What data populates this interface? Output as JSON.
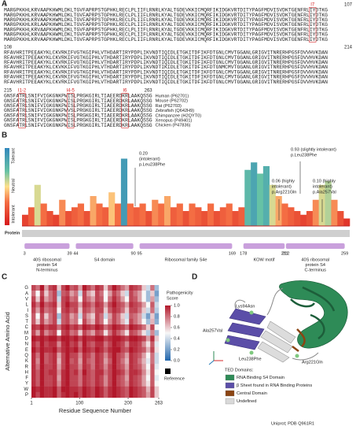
{
  "panel_a": {
    "label": "A",
    "blocks": [
      {
        "start": 1,
        "end": 107,
        "rows": [
          "MARGPKKHLKRVAAPKHWMLDKLTGVFAPRPSTGPHKLRECLPLIIFLRNRLKYALTGDEVKKICMQRFIKIDGKVRTDITYPAGFMDVISVDKTGENFRLIYDTKG",
          "MARGPKKHLKRVAAPKHWMLDKLTGVFAPRPSTGPHKLRECLPLIIFLRNRLKYALTGDEVKKICMQRFIKIDGKVRTDITYPAGFMDVISVDKTGENFRLIYDTKG",
          "MARGPKKHLKRVAAPKHWMLDKLTGVFAPRPSTGPHKLRECLPLIIFLRNRLKYALTGDEVKKICMQRFIKIDGKVRTDITYPAGFMDVISVDKTGENFRLIYDTKG",
          "MARGPKKHLKRLAAPKHWMLDKLTGVFAPRPSTGPHKLRECLPLIIFLRNRLKYALTGDEVKKICMQRFIKIDGKVRTDITYPAGFMDVISVDKTGENFRLIYDTKG",
          "MARGPKKHLKRVAAPKHWMLDKLTGVFAPRPSTGPHKLRECLPLIIFLRNRLKYALTGDEVKKICMQRFIKIDGKVRTDITYPAGFMDVISVDKTGENFRLIYDTKG",
          "MARGPKKHLKRVAAPKHWMLDKLTGVFAPRPSTGPHKLRECLPLIIFLRNRLKYALTGDEVKKICMQRFIKIDGKVRTDITYPAGFMDVISVDKTGENFRLIYDTKG",
          "MARGPKKHLKRVAAPKHWMLDKLTGVFAPRPSTGPHKLRECLPLIIFLRNRLKYALTGDEVKKICMQRFIKIDGKVRTDITYPAGFMDVISVDKTGENFRLIYDTKG"
        ]
      },
      {
        "start": 108,
        "end": 214,
        "rows": [
          "RFAVHRITPEEAKYKLCKVRKIFVGTKGIPHLVTHDARTIRYPDPLIKVNDTIQIDLETGKITDFIKFDTGNLCMVTGGANLGRIGVITNRERHPGSFDVVHVKDAN",
          "RFAVHRITPEEAKYKLCKVRKIFVGTKGIPHLVTHDARTIRYPDPLIKVNDTIQIDLETGKITDFIKFDTGNLCMVTGGANLGRIGVITNRERHPGSFDVVHVKDAN",
          "RFAVHRITPEEAKYKLCKVRKIFVGTKGIPHLVTHDARTIRYPDPLIKVNDTIQIDLETGKITDFIKFDTGNLCMVTGGANLGRIGVITNRERHPGSFDVVHVKDAN",
          "RFAVHRITPEEAKYKLCKVKKIFVGTKGIPHLVTHDARTIRYPDPLIKVNDTIKIDLETGKITDFIKFDTGNMCMVTGGANLGRIGVITNRERHPGSFDVVHVKDAN",
          "RFAVHRITPEEAKYKLCKVRKIFVGTKGIPHLVTHDARTIRYPDPLIKVNDTIQIDLETGKITDFIKFDTGNLCMVTGGANLGRIGVITNRERHPGSFDVVHVKDAN",
          "RFAVHRITPEEAKYKLCKVRKIFVGTKGIPHLVTHDARTIRYPDPLIKVNDTIQIDLETGKITDFIKFDTGNLCMVTGGANLGRIGVITNRERHPGSFDVVHVKDAN",
          "RFAVHRITPEEAKYKLCKVRKIFVGTKGIPHLVTHDARTIRYPDPLIKVNDTIQIDLETGKITDFIKFDTGNLCMVTGGANLGRIGVITNRERHPGSFDVVHVKDAN"
        ]
      },
      {
        "start": 215,
        "end": 263,
        "rows": [
          "GNSFATRLSNIFVIGKGNKPWISLPRGKGIRLTIAEERDKRLAAKQSSG",
          "GNSFATRLSNIFVIGKGNKPWISLPRGKGIRLTIAEERDKRLAAKQSSG",
          "GNSFATRLSNIFVIGKGNKPWISLPRGKGIRLTIAEERDKRLAAKQSSG",
          "GNSFATRLSNIFVIGKGNKPWVSLPRGKGIRLTIAEERDKRLAAKQSSG",
          "GNSFATRLSNIFVIGKGNKPWISLPRGKGIRLTIAEERDKRLAAKQSSG",
          "GNSFATRLSNIFVIGKGNKPWISLPRGKGIRLTIAEERDKRLAAKQSSG",
          "GNSFATRLSNIFVIGKGNKPWISLPRGKGIRLTIAEERDKRLAAKQSSG"
        ],
        "species": [
          "Human (P62701)",
          "Mouse (P62702)",
          "Rat (P62703)",
          "Zebrafish (Q642H9)",
          "Chimpanzee (H2QYT0)",
          "Xenopus (P49401)",
          "Chicken (P47836)"
        ]
      }
    ],
    "markers": [
      "I7",
      "I1-2",
      "I4-5",
      "I6"
    ]
  },
  "panel_b": {
    "label": "B",
    "scale_labels": [
      "Tolerant",
      "Neutral",
      "Intolerant"
    ],
    "profile": [
      0.15,
      0.25,
      0.55,
      0.3,
      0.2,
      0.15,
      0.35,
      0.2,
      0.25,
      0.3,
      0.2,
      0.4,
      0.3,
      0.25,
      0.45,
      0.3,
      0.9,
      0.3,
      0.25,
      0.3,
      0.2,
      0.35,
      0.3,
      0.4,
      0.25,
      0.3,
      0.2,
      0.3,
      0.25,
      0.2,
      0.3,
      0.2,
      0.25,
      0.3,
      0.2,
      0.25,
      0.75,
      0.85,
      0.7,
      0.8,
      0.55,
      0.4,
      0.3,
      0.25,
      0.2,
      0.15,
      0.2,
      0.35,
      0.55,
      0.6,
      0.35,
      0.2,
      0.1
    ],
    "annotations": [
      [
        "0.20",
        "(intolerant)",
        "p.Leu238Phe"
      ],
      [
        "0.93 (slightly intolerant)",
        "p.Leu238Phe"
      ],
      [
        "0.06 (highly",
        "intolerant)",
        "p.Arg221Gln"
      ],
      [
        "0.10 (highly",
        "intolerant)",
        "p.Ala257Val"
      ]
    ],
    "track_label": "Protein",
    "domains": [
      {
        "start": 3,
        "end": 39,
        "label": [
          "40S ribosomal",
          "protein S4",
          "N-terminus"
        ]
      },
      {
        "start": 44,
        "end": 90,
        "label": [
          "S4 domain"
        ]
      },
      {
        "start": 95,
        "end": 169,
        "label": [
          "Ribosomal family S4e"
        ]
      },
      {
        "start": 178,
        "end": 211,
        "label": [
          "KOW motif"
        ]
      },
      {
        "start": 212,
        "end": 259,
        "label": [
          "40S ribosomal",
          "protein S4",
          "C-terminus"
        ]
      }
    ]
  },
  "panel_c": {
    "label": "C",
    "y_label": "Alternative Amino Acid",
    "x_label": "Residue Sequence Number",
    "amino_acids": [
      "G",
      "A",
      "V",
      "L",
      "I",
      "S",
      "T",
      "C",
      "M",
      "D",
      "N",
      "E",
      "Q",
      "K",
      "R",
      "H",
      "F",
      "Y",
      "W",
      "P"
    ],
    "xlim": [
      1,
      263
    ],
    "xticks": [
      1,
      100,
      200,
      263
    ],
    "scores": [
      [
        0.9,
        0.8,
        1,
        0.7,
        0.9,
        0.95,
        0.6,
        0.9,
        1,
        0.85,
        0.9,
        0.7,
        1,
        0.9,
        0.8,
        0.95,
        0.9,
        0.6,
        0.85,
        1,
        0.9,
        0.8,
        0.7,
        0.95,
        0.9,
        0.85,
        0.6,
        0.4,
        0.8,
        0.3
      ],
      [
        0.8,
        0.5,
        0.9,
        0.6,
        0.8,
        0.9,
        0.3,
        0.85,
        0.9,
        0.7,
        0.8,
        0.4,
        0.9,
        0.7,
        0.6,
        0.9,
        0.8,
        0.5,
        0.7,
        0.9,
        0.8,
        0.6,
        0.4,
        0.9,
        0.8,
        0.7,
        0.5,
        0.3,
        0.6,
        0.2
      ],
      [
        0.9,
        0.6,
        0.95,
        0.7,
        0.8,
        0.9,
        0.4,
        0.9,
        0.95,
        0.8,
        0.85,
        0.5,
        0.9,
        0.8,
        0.7,
        0.9,
        0.85,
        0.5,
        0.8,
        0.95,
        0.85,
        0.7,
        0.5,
        0.9,
        0.85,
        0.7,
        0.5,
        0.3,
        0.7,
        0.3
      ],
      [
        0.95,
        0.8,
        1,
        0.85,
        0.9,
        0.95,
        0.6,
        0.9,
        1,
        0.9,
        0.9,
        0.7,
        0.95,
        0.9,
        0.8,
        0.95,
        0.9,
        0.7,
        0.9,
        1,
        0.9,
        0.85,
        0.7,
        0.95,
        0.9,
        0.85,
        0.7,
        0.5,
        0.85,
        0.4
      ],
      [
        0.9,
        0.7,
        0.95,
        0.8,
        0.85,
        0.9,
        0.5,
        0.9,
        0.95,
        0.85,
        0.9,
        0.6,
        0.9,
        0.85,
        0.75,
        0.9,
        0.9,
        0.6,
        0.85,
        0.95,
        0.9,
        0.8,
        0.6,
        0.9,
        0.9,
        0.8,
        0.6,
        0.4,
        0.8,
        0.35
      ],
      [
        0.85,
        0.5,
        0.9,
        0.6,
        0.8,
        0.9,
        0.3,
        0.85,
        0.9,
        0.7,
        0.8,
        0.4,
        0.85,
        0.7,
        0.6,
        0.9,
        0.8,
        0.4,
        0.7,
        0.9,
        0.8,
        0.6,
        0.4,
        0.85,
        0.8,
        0.7,
        0.4,
        0.2,
        0.6,
        0.2
      ],
      [
        0.85,
        0.6,
        0.9,
        0.7,
        0.8,
        0.9,
        0.4,
        0.85,
        0.9,
        0.75,
        0.8,
        0.5,
        0.9,
        0.75,
        0.65,
        0.9,
        0.8,
        0.5,
        0.75,
        0.9,
        0.8,
        0.65,
        0.45,
        0.9,
        0.8,
        0.7,
        0.5,
        0.3,
        0.65,
        0.25
      ],
      [
        0.95,
        0.9,
        1,
        0.9,
        0.95,
        0.95,
        0.8,
        0.95,
        1,
        0.9,
        0.95,
        0.85,
        1,
        0.95,
        0.9,
        1,
        0.95,
        0.8,
        0.9,
        1,
        0.95,
        0.9,
        0.8,
        1,
        0.95,
        0.9,
        0.8,
        0.6,
        0.9,
        0.5
      ],
      [
        0.9,
        0.7,
        0.95,
        0.75,
        0.85,
        0.9,
        0.5,
        0.9,
        0.95,
        0.8,
        0.85,
        0.6,
        0.9,
        0.8,
        0.7,
        0.9,
        0.85,
        0.55,
        0.8,
        0.95,
        0.85,
        0.75,
        0.55,
        0.9,
        0.85,
        0.75,
        0.55,
        0.35,
        0.75,
        0.3
      ],
      [
        1,
        0.95,
        1,
        0.95,
        1,
        1,
        0.9,
        1,
        1,
        0.95,
        1,
        0.9,
        1,
        0.95,
        0.95,
        1,
        1,
        0.9,
        0.95,
        1,
        1,
        0.95,
        0.9,
        1,
        1,
        0.95,
        0.9,
        0.7,
        0.95,
        0.6
      ],
      [
        0.95,
        0.85,
        1,
        0.9,
        0.95,
        0.95,
        0.75,
        0.95,
        1,
        0.9,
        0.95,
        0.8,
        1,
        0.9,
        0.85,
        0.95,
        0.95,
        0.8,
        0.9,
        1,
        0.95,
        0.9,
        0.75,
        0.95,
        0.95,
        0.9,
        0.75,
        0.55,
        0.85,
        0.45
      ],
      [
        1,
        0.9,
        1,
        0.95,
        0.95,
        1,
        0.85,
        0.95,
        1,
        0.95,
        1,
        0.85,
        1,
        0.95,
        0.9,
        1,
        0.95,
        0.85,
        0.95,
        1,
        1,
        0.9,
        0.85,
        1,
        0.95,
        0.9,
        0.85,
        0.65,
        0.9,
        0.55
      ],
      [
        0.95,
        0.8,
        1,
        0.85,
        0.9,
        0.95,
        0.7,
        0.9,
        1,
        0.9,
        0.9,
        0.75,
        0.95,
        0.9,
        0.8,
        0.95,
        0.9,
        0.75,
        0.9,
        1,
        0.9,
        0.85,
        0.7,
        0.95,
        0.9,
        0.85,
        0.7,
        0.5,
        0.8,
        0.4
      ],
      [
        0.95,
        0.75,
        1,
        0.85,
        0.9,
        0.95,
        0.65,
        0.9,
        1,
        0.85,
        0.9,
        0.7,
        0.95,
        0.85,
        0.8,
        0.95,
        0.9,
        0.7,
        0.85,
        1,
        0.9,
        0.8,
        0.65,
        0.95,
        0.9,
        0.8,
        0.65,
        0.45,
        0.8,
        0.4
      ],
      [
        0.95,
        0.8,
        1,
        0.9,
        0.9,
        0.95,
        0.7,
        0.9,
        1,
        0.9,
        0.9,
        0.75,
        0.95,
        0.9,
        0.8,
        0.95,
        0.9,
        0.75,
        0.9,
        1,
        0.9,
        0.85,
        0.7,
        0.95,
        0.9,
        0.85,
        0.7,
        0.5,
        0.85,
        0.45
      ],
      [
        0.95,
        0.85,
        1,
        0.9,
        0.95,
        0.95,
        0.75,
        0.95,
        1,
        0.9,
        0.95,
        0.8,
        1,
        0.9,
        0.85,
        0.95,
        0.95,
        0.8,
        0.9,
        1,
        0.95,
        0.9,
        0.75,
        0.95,
        0.95,
        0.9,
        0.75,
        0.55,
        0.85,
        0.5
      ],
      [
        0.95,
        0.85,
        1,
        0.9,
        0.9,
        0.95,
        0.7,
        0.95,
        1,
        0.9,
        0.9,
        0.8,
        0.95,
        0.9,
        0.85,
        0.95,
        0.9,
        0.75,
        0.9,
        1,
        0.9,
        0.85,
        0.7,
        0.95,
        0.9,
        0.85,
        0.7,
        0.5,
        0.85,
        0.45
      ],
      [
        0.95,
        0.85,
        1,
        0.9,
        0.9,
        0.95,
        0.75,
        0.95,
        1,
        0.9,
        0.9,
        0.8,
        0.95,
        0.9,
        0.85,
        0.95,
        0.9,
        0.75,
        0.9,
        1,
        0.9,
        0.85,
        0.75,
        0.95,
        0.9,
        0.85,
        0.7,
        0.55,
        0.85,
        0.5
      ],
      [
        1,
        0.95,
        1,
        0.95,
        0.95,
        1,
        0.85,
        1,
        1,
        0.95,
        0.95,
        0.9,
        1,
        0.95,
        0.9,
        1,
        0.95,
        0.85,
        0.95,
        1,
        0.95,
        0.9,
        0.85,
        1,
        0.95,
        0.9,
        0.85,
        0.65,
        0.9,
        0.6
      ],
      [
        1,
        0.9,
        1,
        0.95,
        0.95,
        1,
        0.85,
        0.95,
        1,
        0.95,
        1,
        0.9,
        1,
        0.95,
        0.9,
        1,
        0.95,
        0.85,
        0.95,
        1,
        0.95,
        0.9,
        0.85,
        1,
        0.95,
        0.9,
        0.85,
        0.7,
        0.9,
        0.6
      ]
    ],
    "colorbar_title": [
      "Pathogenicity",
      "Score"
    ],
    "colorbar_lim": [
      0,
      1
    ],
    "colorbar_ticks": [
      {
        "value": 0,
        "label": "0.0"
      },
      0.2,
      0.4,
      0.6,
      0.8,
      {
        "value": 1,
        "label": "1.0"
      }
    ],
    "reference_label": "Reference"
  },
  "panel_d": {
    "label": "D",
    "variants": [
      "Lys94Asn",
      "Ala257Val",
      "Leu238Phe",
      "Arg221Gln"
    ],
    "legend_title": "TED Domains:",
    "legend": [
      {
        "name": "RNA Binding S4 Domain",
        "color": "#2e8b57"
      },
      {
        "name": "β Sheet found in RNA Binding Proteins",
        "color": "#5b4ea8"
      },
      {
        "name": "Central Domain",
        "color": "#8b4513"
      },
      {
        "name": "Undefined",
        "color": "#d9d9d9"
      }
    ],
    "source": "Uniprot; PDB Q961R1"
  }
}
